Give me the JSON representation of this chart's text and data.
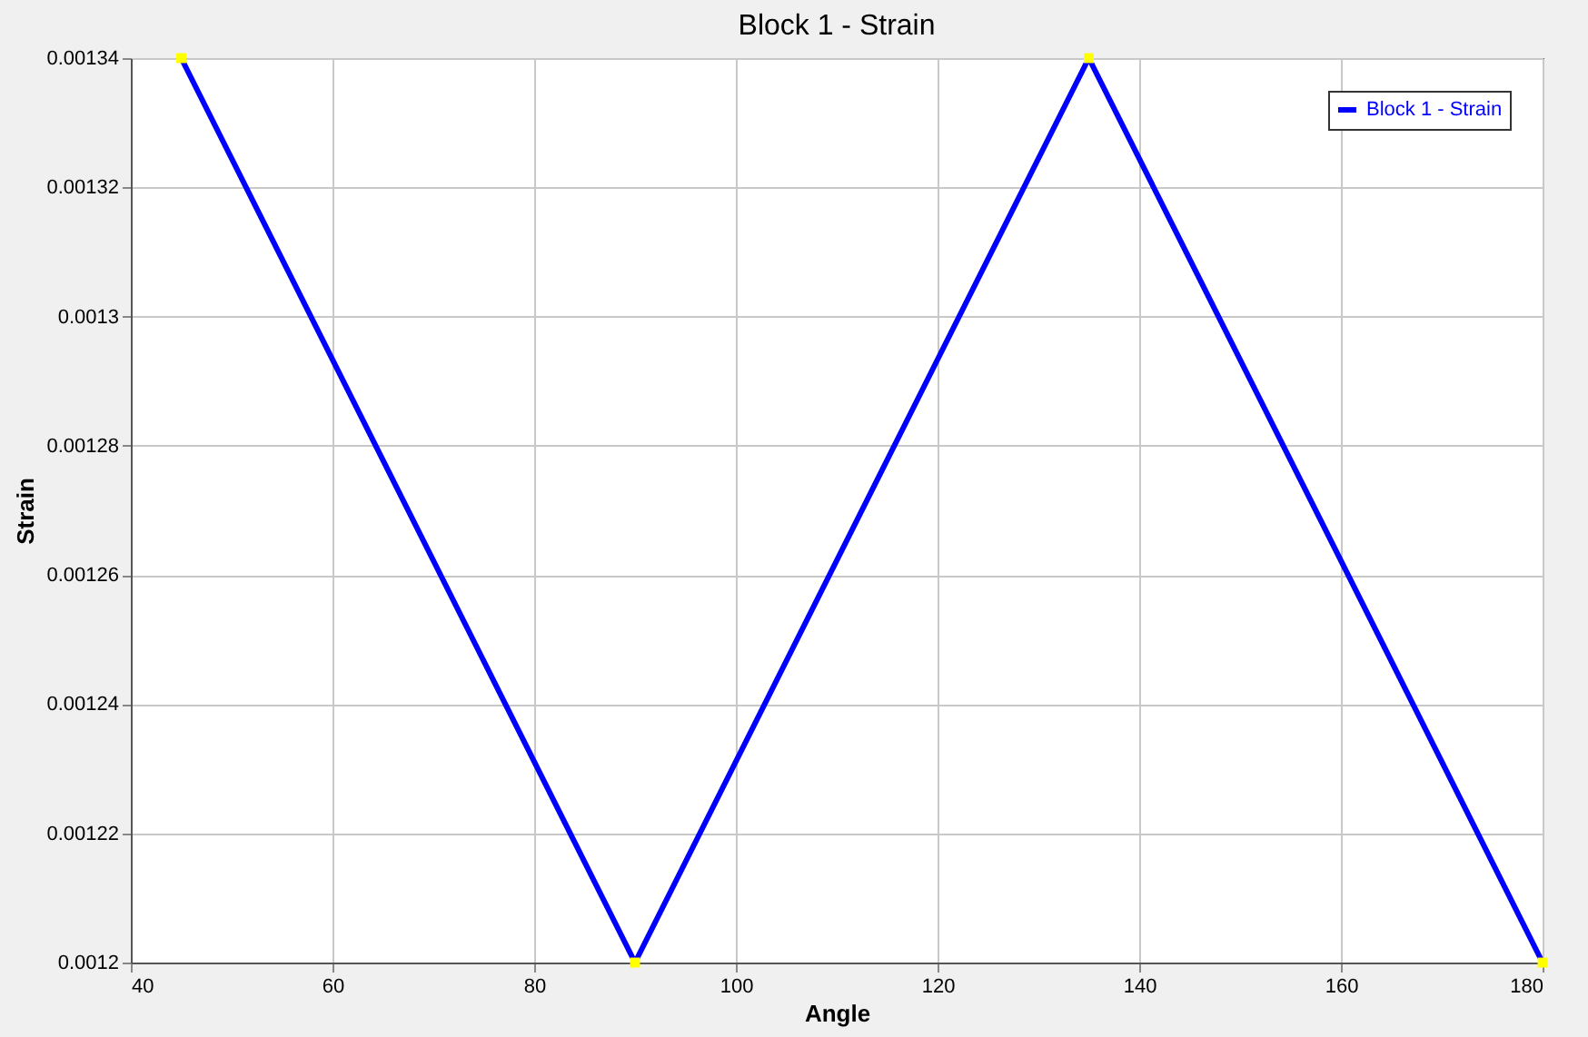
{
  "chart_data": {
    "type": "line",
    "title": "Block 1 - Strain",
    "xlabel": "Angle",
    "ylabel": "Strain",
    "x": [
      45,
      90,
      135,
      180
    ],
    "series": [
      {
        "name": "Block 1 - Strain",
        "color": "#0000ff",
        "values": [
          0.00134,
          0.0012,
          0.00134,
          0.0012
        ]
      }
    ],
    "xlim": [
      40,
      180
    ],
    "xticks": [
      40,
      60,
      80,
      100,
      120,
      140,
      160,
      180
    ],
    "ylim": [
      0.0012,
      0.00134
    ],
    "yticks": [
      0.0012,
      0.00122,
      0.00124,
      0.00126,
      0.00128,
      0.0013,
      0.00132,
      0.00134
    ],
    "grid": true,
    "legend": "top right",
    "marker": "square",
    "line_style": "solid"
  }
}
